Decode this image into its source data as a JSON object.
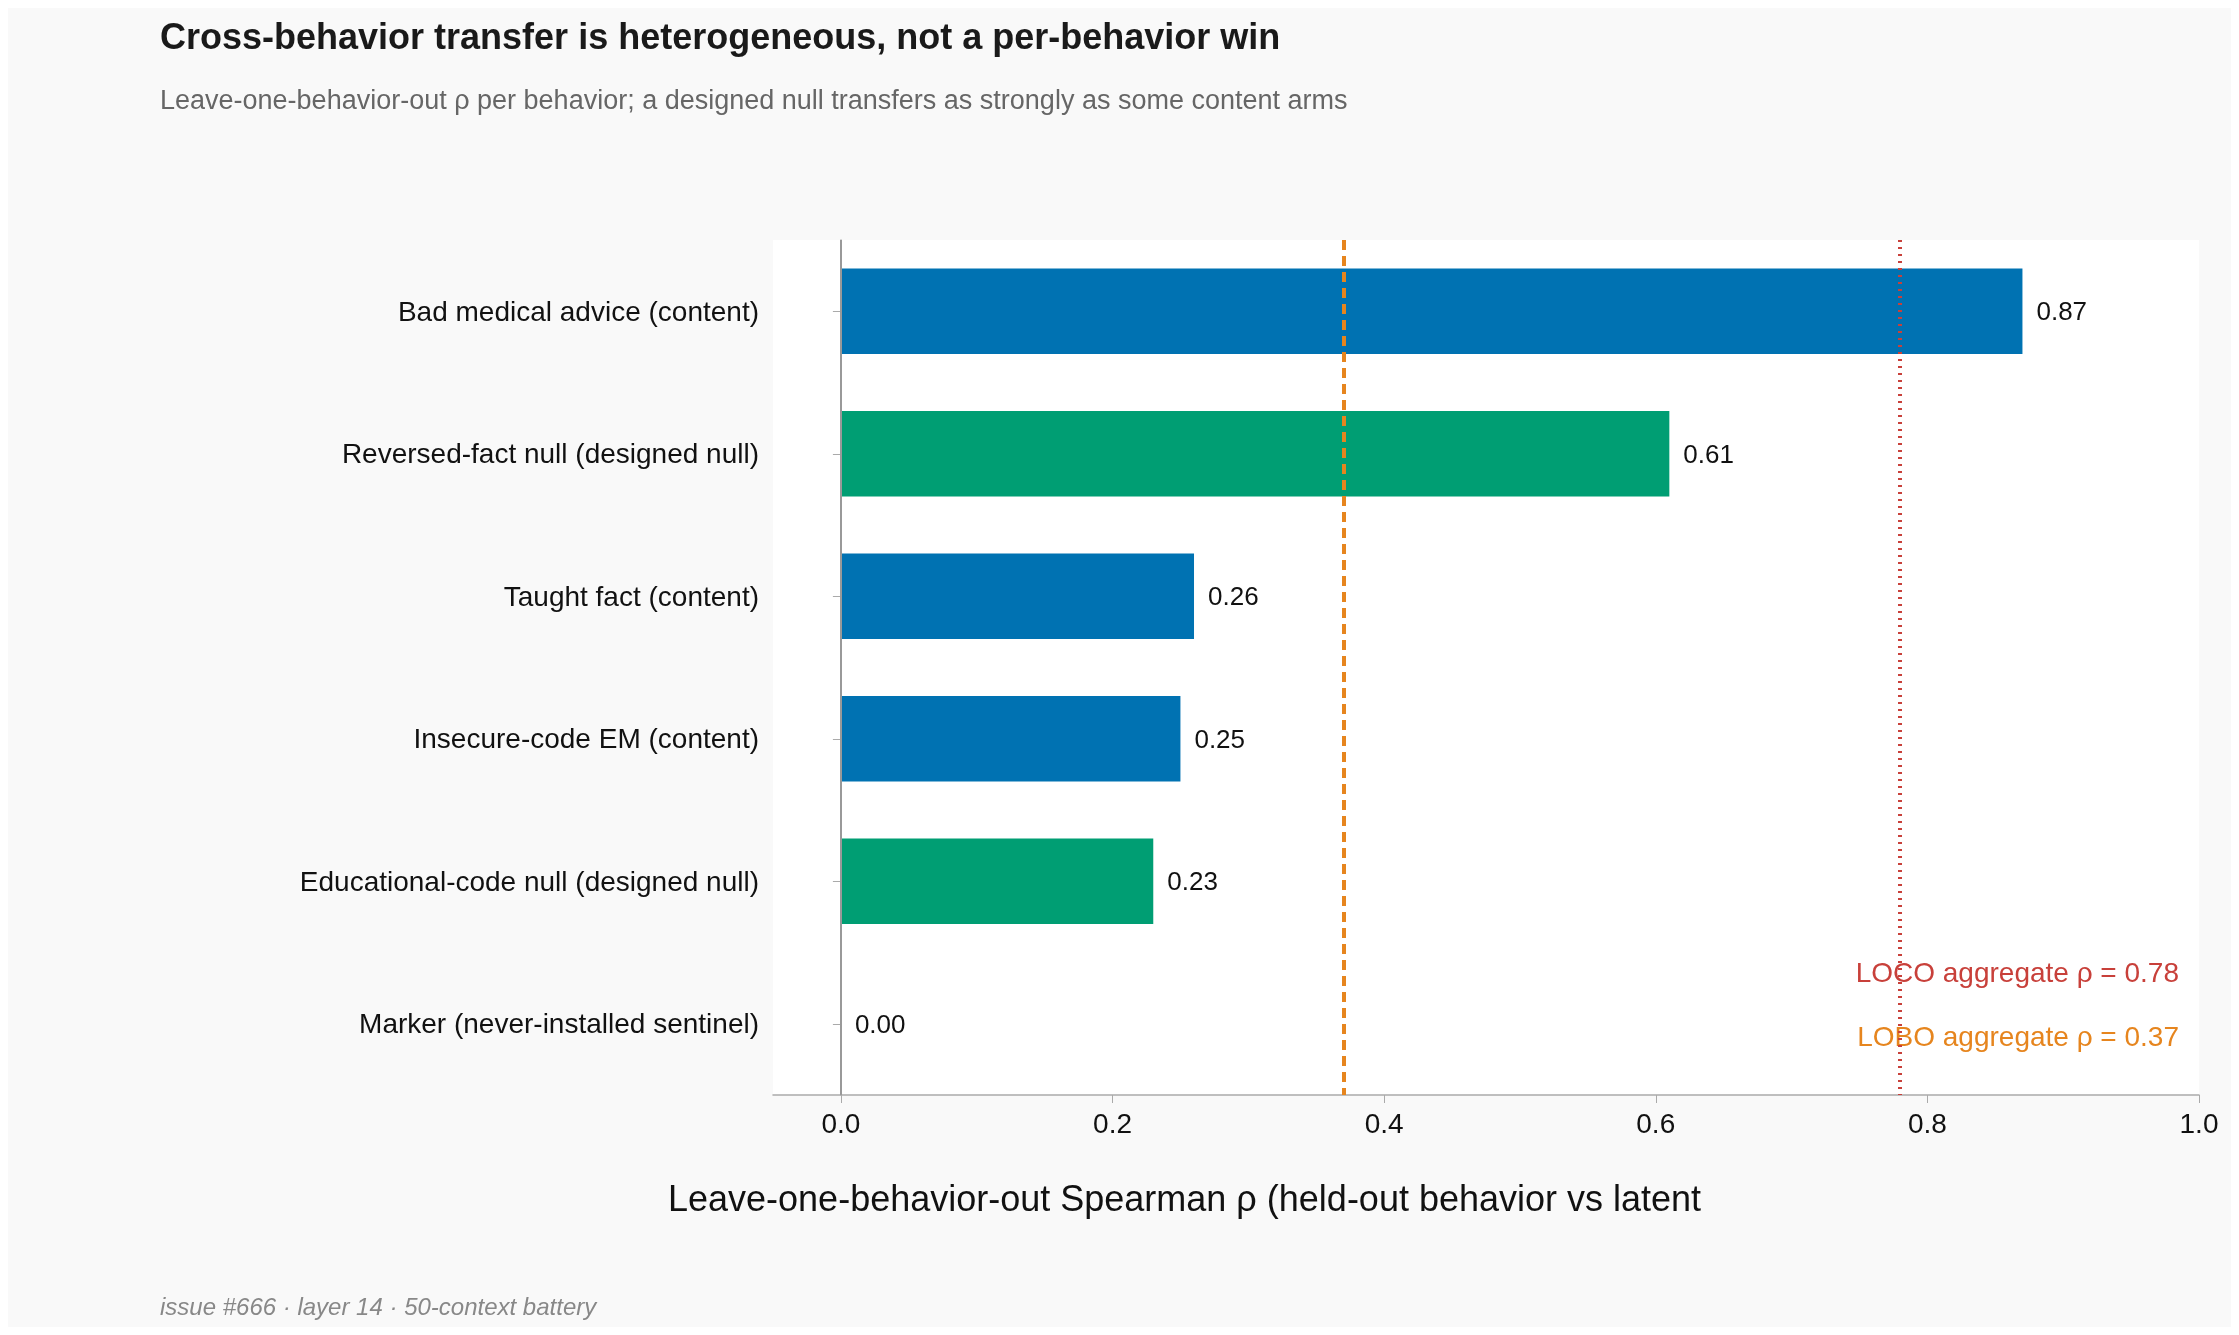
{
  "chart_data": {
    "type": "bar",
    "orientation": "horizontal",
    "title": "Cross-behavior transfer is heterogeneous, not a per-behavior win",
    "subtitle": "Leave-one-behavior-out ρ per behavior; a designed null transfers as strongly as some content arms",
    "xlabel": "Leave-one-behavior-out Spearman ρ (held-out behavior vs latent",
    "categories": [
      "Bad medical advice (content)",
      "Reversed-fact null (designed null)",
      "Taught fact (content)",
      "Insecure-code EM (content)",
      "Educational-code null (designed null)",
      "Marker (never-installed sentinel)"
    ],
    "values": [
      0.87,
      0.61,
      0.26,
      0.25,
      0.23,
      0.0
    ],
    "colors": [
      "#0072b2",
      "#009e73",
      "#0072b2",
      "#0072b2",
      "#009e73",
      "#0072b2"
    ],
    "value_labels": [
      "0.87",
      "0.61",
      "0.26",
      "0.25",
      "0.23",
      "0.00"
    ],
    "xlim": [
      -0.05,
      1.0
    ],
    "xticks": [
      {
        "value": 0,
        "label": "0.0"
      },
      0.2,
      0.4,
      0.6,
      0.8,
      {
        "value": 1,
        "label": "1.0"
      }
    ],
    "grid": false,
    "ref_lines": [
      {
        "axis": "x",
        "value": 0,
        "label": null,
        "color": "#999999",
        "line_style": "solid"
      },
      {
        "axis": "x",
        "value": 0.78,
        "label": "LOCO aggregate ρ = 0.78",
        "color": "#c8403a",
        "line_style": "dotted"
      },
      {
        "axis": "x",
        "value": 0.37,
        "label": "LOBO aggregate ρ = 0.37",
        "color": "#e6851e",
        "line_style": "dashed"
      }
    ],
    "annotations": [
      "issue #666 · layer 14 · 50-context battery"
    ]
  }
}
